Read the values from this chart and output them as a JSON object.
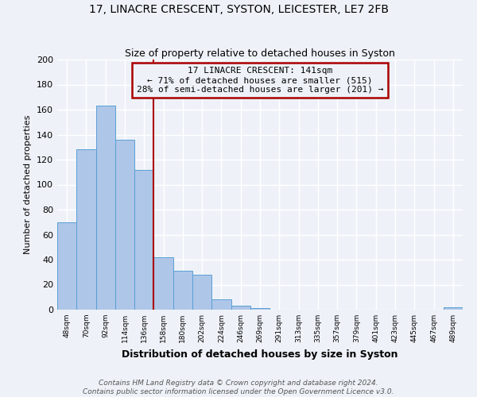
{
  "title": "17, LINACRE CRESCENT, SYSTON, LEICESTER, LE7 2FB",
  "subtitle": "Size of property relative to detached houses in Syston",
  "xlabel": "Distribution of detached houses by size in Syston",
  "ylabel": "Number of detached properties",
  "bar_labels": [
    "48sqm",
    "70sqm",
    "92sqm",
    "114sqm",
    "136sqm",
    "158sqm",
    "180sqm",
    "202sqm",
    "224sqm",
    "246sqm",
    "269sqm",
    "291sqm",
    "313sqm",
    "335sqm",
    "357sqm",
    "379sqm",
    "401sqm",
    "423sqm",
    "445sqm",
    "467sqm",
    "489sqm"
  ],
  "bar_values": [
    70,
    128,
    163,
    136,
    112,
    42,
    31,
    28,
    8,
    3,
    1,
    0,
    0,
    0,
    0,
    0,
    0,
    0,
    0,
    0,
    2
  ],
  "bar_color": "#aec6e8",
  "bar_edge_color": "#5a9fd4",
  "vline_color": "#aa0000",
  "annotation_title": "17 LINACRE CRESCENT: 141sqm",
  "annotation_line1": "← 71% of detached houses are smaller (515)",
  "annotation_line2": "28% of semi-detached houses are larger (201) →",
  "annotation_box_color": "#aa0000",
  "ylim": [
    0,
    200
  ],
  "yticks": [
    0,
    20,
    40,
    60,
    80,
    100,
    120,
    140,
    160,
    180,
    200
  ],
  "footer1": "Contains HM Land Registry data © Crown copyright and database right 2024.",
  "footer2": "Contains public sector information licensed under the Open Government Licence v3.0.",
  "bg_color": "#eef2f8",
  "grid_color": "#ffffff"
}
